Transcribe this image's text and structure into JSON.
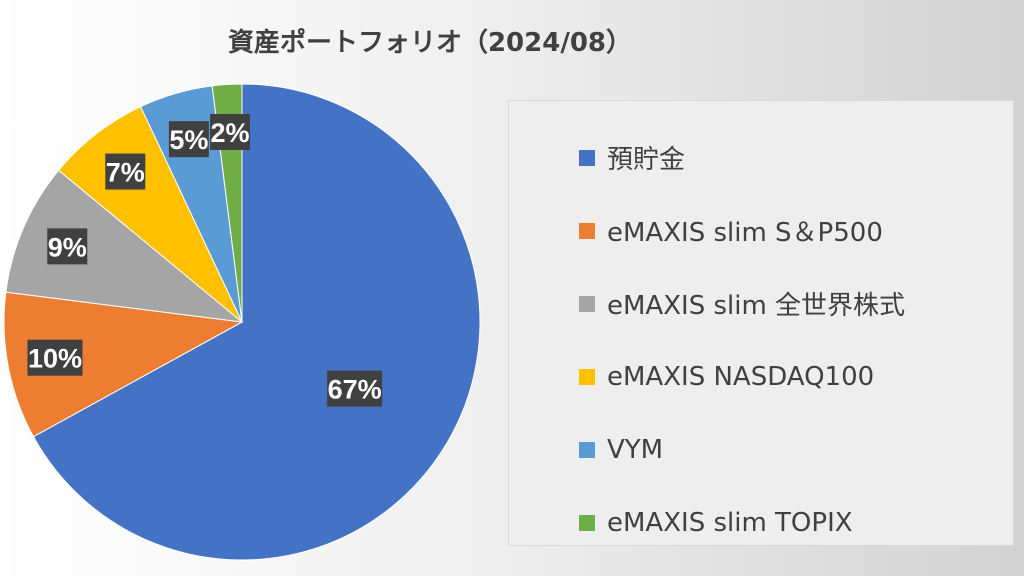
{
  "chart_data": {
    "type": "pie",
    "title": "資産ポートフォリオ（2024/08）",
    "legend_position": "right",
    "series": [
      {
        "name": "預貯金",
        "value": 67,
        "label": "67%",
        "color": "#4472C4"
      },
      {
        "name": "eMAXIS slim S＆P500",
        "value": 10,
        "label": "10%",
        "color": "#ED7D31"
      },
      {
        "name": "eMAXIS slim 全世界株式",
        "value": 9,
        "label": "9%",
        "color": "#A5A5A5"
      },
      {
        "name": "eMAXIS NASDAQ100",
        "value": 7,
        "label": "7%",
        "color": "#FFC000"
      },
      {
        "name": "VYM",
        "value": 5,
        "label": "5%",
        "color": "#5B9BD5"
      },
      {
        "name": "eMAXIS slim TOPIX",
        "value": 2,
        "label": "2%",
        "color": "#70AD47"
      }
    ]
  }
}
